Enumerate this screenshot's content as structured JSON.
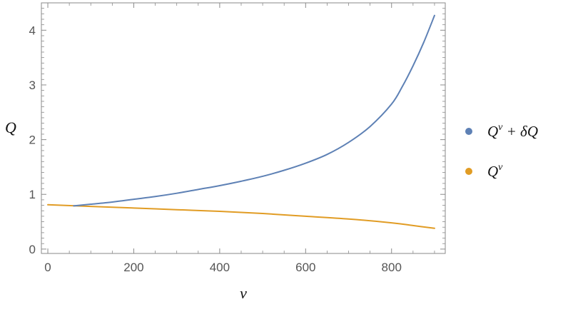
{
  "chart_data": {
    "type": "line",
    "title": "",
    "xlabel": "v",
    "ylabel": "Q",
    "xlim": [
      -15,
      925
    ],
    "ylim": [
      -0.08,
      4.5
    ],
    "x_ticks": [
      0,
      200,
      400,
      600,
      800
    ],
    "y_ticks": [
      0,
      1,
      2,
      3,
      4
    ],
    "x_tick_labels": [
      "0",
      "200",
      "400",
      "600",
      "800"
    ],
    "y_tick_labels": [
      "0",
      "1",
      "2",
      "3",
      "4"
    ],
    "grid": false,
    "legend_position": "right",
    "series": [
      {
        "name": "Qv+δQ",
        "legend": {
          "base": "Q",
          "sup": "v",
          "rest": " + δQ"
        },
        "color": "#5E81B5",
        "x": [
          60,
          100,
          150,
          200,
          250,
          300,
          350,
          400,
          450,
          500,
          550,
          600,
          650,
          700,
          750,
          800,
          825,
          850,
          875,
          900
        ],
        "y": [
          0.79,
          0.82,
          0.86,
          0.91,
          0.96,
          1.02,
          1.09,
          1.16,
          1.24,
          1.33,
          1.44,
          1.57,
          1.73,
          1.95,
          2.24,
          2.65,
          2.97,
          3.35,
          3.78,
          4.27
        ]
      },
      {
        "name": "Qv",
        "legend": {
          "base": "Q",
          "sup": "v",
          "rest": ""
        },
        "color": "#E19C24",
        "x": [
          0,
          100,
          200,
          300,
          400,
          500,
          600,
          700,
          800,
          850,
          900
        ],
        "y": [
          0.81,
          0.78,
          0.75,
          0.72,
          0.69,
          0.65,
          0.6,
          0.55,
          0.48,
          0.43,
          0.38
        ]
      }
    ]
  }
}
